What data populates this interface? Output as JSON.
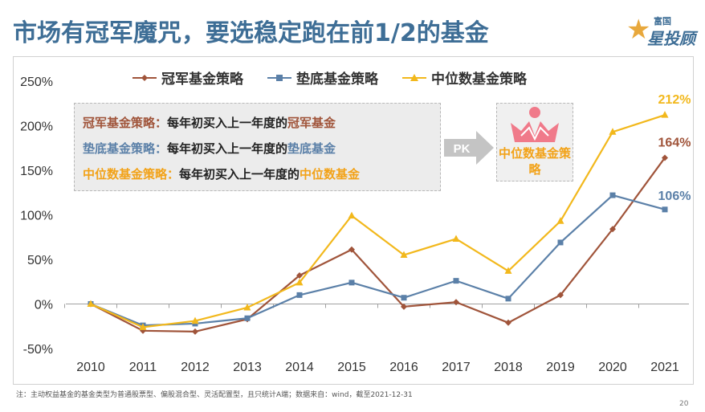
{
  "slide": {
    "title": "市场有冠军魔咒，要选稳定跑在前1/2的基金",
    "logo_brand": "富国",
    "logo_text": "星投顾",
    "footnote": "注：主动权益基金的基金类型为普通股票型、偏股混合型、灵活配置型，且只统计A端；数据来自：wind，截至2021-12-31",
    "page_number": "20"
  },
  "annotation": {
    "lines": [
      {
        "prefix": "冠军基金策略：",
        "mid": "每年初买入上一年度的",
        "suffix": "冠军基金",
        "color": "#a0543a"
      },
      {
        "prefix": "垫底基金策略：",
        "mid": "每年初买入上一年度的",
        "suffix": "垫底基金",
        "color": "#5b80a8"
      },
      {
        "prefix": "中位数基金策略：",
        "mid": "每年初买入上一年度的",
        "suffix": "中位数基金",
        "color": "#f2a218"
      }
    ],
    "pk_label": "PK",
    "badge_label": "中位数基金策略"
  },
  "colors": {
    "champion": "#a0543a",
    "bottom": "#5b80a8",
    "median": "#f2b81c",
    "axis_text": "#333333",
    "title": "#3e6e96"
  },
  "chart_data": {
    "type": "line",
    "title": "",
    "xlabel": "",
    "ylabel": "",
    "categories": [
      "2010",
      "2011",
      "2012",
      "2013",
      "2014",
      "2015",
      "2016",
      "2017",
      "2018",
      "2019",
      "2020",
      "2021"
    ],
    "ylim": [
      -50,
      250
    ],
    "yticks": [
      -50,
      0,
      50,
      100,
      150,
      200,
      250
    ],
    "ytick_labels": [
      "-50%",
      "0%",
      "50%",
      "100%",
      "150%",
      "200%",
      "250%"
    ],
    "legend_position": "top",
    "series": [
      {
        "name": "冠军基金策略",
        "marker": "diamond",
        "values": [
          0,
          -30,
          -31,
          -17,
          32,
          61,
          -3,
          2,
          -21,
          10,
          84,
          164
        ]
      },
      {
        "name": "垫底基金策略",
        "marker": "square",
        "values": [
          0,
          -24,
          -22,
          -16,
          10,
          24,
          7,
          26,
          6,
          69,
          122,
          106
        ]
      },
      {
        "name": "中位数基金策略",
        "marker": "triangle",
        "values": [
          0,
          -26,
          -19,
          -4,
          24,
          99,
          55,
          73,
          37,
          93,
          193,
          212
        ]
      }
    ],
    "end_labels": [
      "164%",
      "106%",
      "212%"
    ]
  }
}
